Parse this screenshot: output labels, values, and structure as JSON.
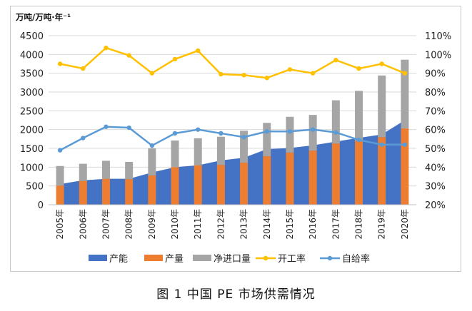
{
  "chart_data": {
    "type": "bar",
    "unit_label": "万吨/万吨·年⁻¹",
    "categories": [
      "2005年",
      "2006年",
      "2007年",
      "2008年",
      "2009年",
      "2010年",
      "2011年",
      "2012年",
      "2013年",
      "2014年",
      "2015年",
      "2016年",
      "2017年",
      "2018年",
      "2019年",
      "2020年"
    ],
    "ylim": [
      0,
      4500
    ],
    "yticks": [
      0,
      500,
      1000,
      1500,
      2000,
      2500,
      3000,
      3500,
      4000,
      4500
    ],
    "y2lim": [
      20,
      110
    ],
    "y2ticks": [
      "20%",
      "30%",
      "40%",
      "50%",
      "60%",
      "70%",
      "80%",
      "90%",
      "100%",
      "110%"
    ],
    "legend_position": "bottom",
    "grid": true,
    "series": [
      {
        "name": "产能",
        "kind": "area",
        "color": "#4472C4",
        "values": [
          550,
          650,
          690,
          690,
          860,
          1000,
          1050,
          1180,
          1250,
          1480,
          1510,
          1580,
          1680,
          1780,
          1870,
          2250
        ]
      },
      {
        "name": "产量",
        "kind": "bar",
        "color": "#ED7D31",
        "values": [
          510,
          630,
          690,
          680,
          780,
          1000,
          1050,
          1060,
          1120,
          1290,
          1390,
          1440,
          1630,
          1700,
          1800,
          2030
        ]
      },
      {
        "name": "净进口量",
        "kind": "bar_stacked",
        "color": "#A5A5A5",
        "values": [
          520,
          460,
          480,
          460,
          720,
          710,
          720,
          750,
          850,
          890,
          950,
          950,
          1150,
          1330,
          1640,
          1830
        ]
      },
      {
        "name": "开工率",
        "kind": "line_right",
        "color": "#FFC000",
        "values": [
          95,
          92.5,
          103.5,
          99.5,
          90,
          97.5,
          102,
          89.5,
          89,
          87.5,
          92,
          90,
          97,
          92.5,
          95,
          90
        ]
      },
      {
        "name": "自给率",
        "kind": "line_right",
        "color": "#5B9BD5",
        "values": [
          49,
          55.5,
          61.5,
          61,
          51.5,
          58,
          60,
          58,
          56,
          59,
          59,
          60,
          58.5,
          54.5,
          52,
          52
        ]
      }
    ]
  },
  "caption": "图 1   中国 PE 市场供需情况"
}
